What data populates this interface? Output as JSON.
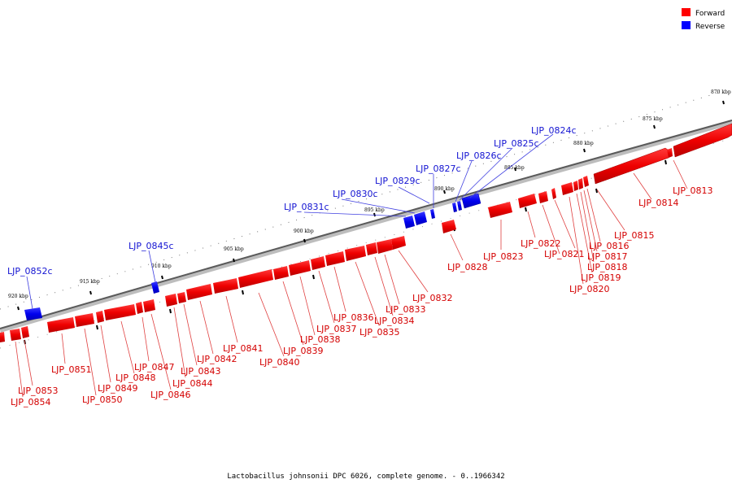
{
  "legend": {
    "forward": {
      "label": "Forward",
      "color": "#ff0000"
    },
    "reverse": {
      "label": "Reverse",
      "color": "#0000ff"
    }
  },
  "caption": "Lactobacillus johnsonii DPC 6026, complete genome. - 0..1966342",
  "ticks": [
    {
      "label": "870 kbp"
    },
    {
      "label": "875 kbp"
    },
    {
      "label": "880 kbp"
    },
    {
      "label": "885 kbp"
    },
    {
      "label": "890 kbp"
    },
    {
      "label": "895 kbp"
    },
    {
      "label": "900 kbp"
    },
    {
      "label": "905 kbp"
    },
    {
      "label": "910 kbp"
    },
    {
      "label": "915 kbp"
    },
    {
      "label": "920 kbp"
    }
  ],
  "genes_forward": [
    "LJP_0813",
    "LJP_0814",
    "LJP_0815",
    "LJP_0816",
    "LJP_0817",
    "LJP_0818",
    "LJP_0819",
    "LJP_0820",
    "LJP_0821",
    "LJP_0822",
    "LJP_0823",
    "LJP_0828",
    "LJP_0832",
    "LJP_0833",
    "LJP_0834",
    "LJP_0835",
    "LJP_0836",
    "LJP_0837",
    "LJP_0838",
    "LJP_0839",
    "LJP_0840",
    "LJP_0841",
    "LJP_0842",
    "LJP_0843",
    "LJP_0844",
    "LJP_0846",
    "LJP_0847",
    "LJP_0848",
    "LJP_0849",
    "LJP_0850",
    "LJP_0851",
    "LJP_0853",
    "LJP_0854"
  ],
  "genes_reverse": [
    "LJP_0824c",
    "LJP_0825c",
    "LJP_0826c",
    "LJP_0827c",
    "LJP_0829c",
    "LJP_0830c",
    "LJP_0831c",
    "LJP_0845c",
    "LJP_0852c"
  ]
}
